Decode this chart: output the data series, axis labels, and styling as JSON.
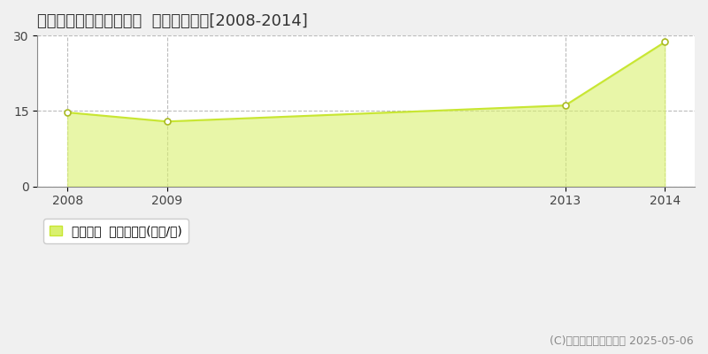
{
  "title": "上川郡東神楽町北二条東  住宅価格推移[2008-2014]",
  "years": [
    2008,
    2009,
    2013,
    2014
  ],
  "values": [
    14.7,
    12.9,
    16.1,
    28.7
  ],
  "line_color": "#c8e632",
  "fill_color": "#d9f06e",
  "fill_alpha": 0.6,
  "marker_color": "white",
  "marker_edgecolor": "#aabb22",
  "ylim": [
    0,
    30
  ],
  "yticks": [
    0,
    15,
    30
  ],
  "grid_color": "#bbbbbb",
  "grid_style": "--",
  "plot_bg_color": "#ffffff",
  "fig_bg_color": "#f0f0f0",
  "legend_label": "住宅価格  平均坪単価(万円/坪)",
  "copyright": "(C)土地価格ドットコム 2025-05-06",
  "title_fontsize": 13,
  "tick_fontsize": 10,
  "legend_fontsize": 10,
  "copyright_fontsize": 9
}
